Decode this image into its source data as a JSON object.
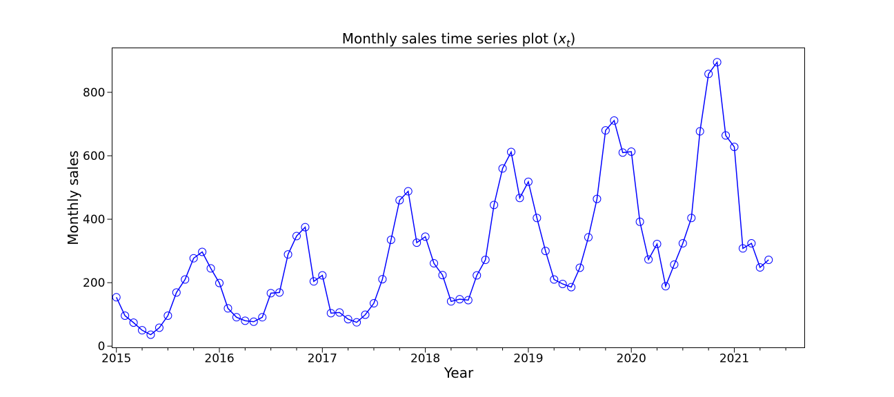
{
  "chart_data": {
    "type": "line",
    "title": "Monthly sales time series plot (",
    "title_math": "x",
    "title_sub": "t",
    "title_end": ")",
    "xlabel": "Year",
    "ylabel": "Monthly sales",
    "xlim": [
      "2014-12",
      "2021-09"
    ],
    "ylim": [
      -5,
      940
    ],
    "x_ticks": [
      "2015",
      "2016",
      "2017",
      "2018",
      "2019",
      "2020",
      "2021"
    ],
    "y_ticks": [
      "0",
      "200",
      "400",
      "600",
      "800"
    ],
    "grid": false,
    "series": [
      {
        "color": "#0000ff",
        "marker": "open-circle",
        "start": "2015-01",
        "frequency": "monthly",
        "values": [
          154,
          96,
          74,
          50,
          36,
          58,
          96,
          169,
          210,
          277,
          297,
          245,
          199,
          119,
          91,
          80,
          77,
          91,
          167,
          169,
          289,
          347,
          375,
          204,
          223,
          104,
          106,
          85,
          75,
          99,
          135,
          211,
          335,
          460,
          488,
          326,
          345,
          261,
          224,
          141,
          148,
          145,
          223,
          272,
          445,
          560,
          612,
          467,
          518,
          404,
          300,
          210,
          196,
          186,
          247,
          343,
          464,
          680,
          711,
          610,
          613,
          392,
          273,
          322,
          189,
          257,
          324,
          404,
          677,
          858,
          895,
          664,
          628,
          308,
          324,
          248,
          272
        ]
      }
    ]
  }
}
